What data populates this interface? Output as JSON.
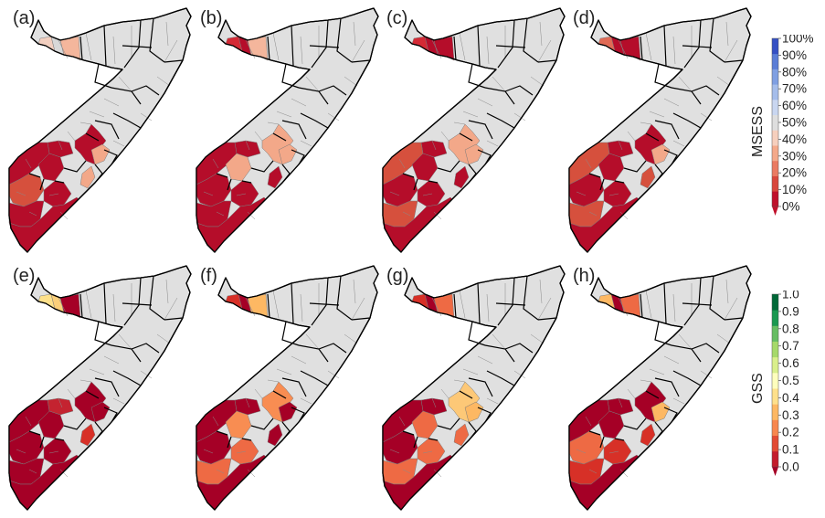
{
  "panels": [
    {
      "label": "(a)",
      "row": 0,
      "col": 0,
      "scheme": "msess",
      "fills": {
        "nw1": "#f2cfc0",
        "nw2": "#d8d8d8",
        "nw3": "#f4b69c",
        "c1": "#b50d2a",
        "c2": "#b50d2a",
        "c3": "#f3a889",
        "c4": "#f3a889",
        "s1": "#b50d2a",
        "s2": "#b50d2a",
        "s3": "#d6503d",
        "s4": "#b50d2a",
        "s5": "#b50d2a",
        "s6": "#b50d2a"
      }
    },
    {
      "label": "(b)",
      "row": 0,
      "col": 1,
      "scheme": "msess",
      "fills": {
        "nw1": "#d42a35",
        "nw2": "#b50d2a",
        "nw3": "#f4b69c",
        "c1": "#b50d2a",
        "c2": "#f3a889",
        "c3": "#f3a889",
        "c4": "#b50d2a",
        "s1": "#b50d2a",
        "s2": "#f3a889",
        "s3": "#b50d2a",
        "s4": "#b50d2a",
        "s5": "#b50d2a",
        "s6": "#b50d2a"
      }
    },
    {
      "label": "(c)",
      "row": 0,
      "col": 2,
      "scheme": "msess",
      "fills": {
        "nw1": "#d42a35",
        "nw2": "#b50d2a",
        "nw3": "#b50d2a",
        "c1": "#b50d2a",
        "c2": "#f3a889",
        "c3": "#f3a889",
        "c4": "#b50d2a",
        "s1": "#d6503d",
        "s2": "#b50d2a",
        "s3": "#b50d2a",
        "s4": "#b50d2a",
        "s5": "#d6503d",
        "s6": "#b50d2a"
      }
    },
    {
      "label": "(d)",
      "row": 0,
      "col": 3,
      "scheme": "msess",
      "fills": {
        "nw1": "#e06a55",
        "nw2": "#b50d2a",
        "nw3": "#b50d2a",
        "c1": "#b50d2a",
        "c2": "#b50d2a",
        "c3": "#f3a889",
        "c4": "#d6503d",
        "s1": "#d6503d",
        "s2": "#b50d2a",
        "s3": "#b50d2a",
        "s4": "#b50d2a",
        "s5": "#d6503d",
        "s6": "#b50d2a"
      }
    },
    {
      "label": "(e)",
      "row": 1,
      "col": 0,
      "scheme": "gss",
      "fills": {
        "nw1": "#fde08a",
        "nw2": "#fbcf7a",
        "nw3": "#a50026",
        "c1": "#c42330",
        "c2": "#a50026",
        "c3": "#a50026",
        "c4": "#d73027",
        "s1": "#a50026",
        "s2": "#a50026",
        "s3": "#a50026",
        "s4": "#a50026",
        "s5": "#a50026",
        "s6": "#a50026"
      }
    },
    {
      "label": "(f)",
      "row": 1,
      "col": 1,
      "scheme": "gss",
      "fills": {
        "nw1": "#d73027",
        "nw2": "#a50026",
        "nw3": "#fdb863",
        "c1": "#a50026",
        "c2": "#f88d52",
        "c3": "#a50026",
        "c4": "#a50026",
        "s1": "#a50026",
        "s2": "#f88d52",
        "s3": "#a50026",
        "s4": "#ee6a44",
        "s5": "#ee6a44",
        "s6": "#a50026"
      }
    },
    {
      "label": "(g)",
      "row": 1,
      "col": 2,
      "scheme": "gss",
      "fills": {
        "nw1": "#d73027",
        "nw2": "#a50026",
        "nw3": "#ee6a44",
        "c1": "#a50026",
        "c2": "#fdc877",
        "c3": "#fdb863",
        "c4": "#ee6a44",
        "s1": "#a50026",
        "s2": "#ee6a44",
        "s3": "#a50026",
        "s4": "#ee6a44",
        "s5": "#ee6a44",
        "s6": "#a50026"
      }
    },
    {
      "label": "(h)",
      "row": 1,
      "col": 3,
      "scheme": "gss",
      "fills": {
        "nw1": "#fdb863",
        "nw2": "#a50026",
        "nw3": "#ee6a44",
        "c1": "#a50026",
        "c2": "#a50026",
        "c3": "#fdb863",
        "c4": "#d73027",
        "s1": "#a50026",
        "s2": "#a50026",
        "s3": "#ee6a44",
        "s4": "#d73027",
        "s5": "#d73027",
        "s6": "#a50026"
      }
    }
  ],
  "colorbars": {
    "msess": {
      "title": "MSESS",
      "ticks": [
        "0%",
        "10%",
        "20%",
        "30%",
        "40%",
        "50%",
        "60%",
        "70%",
        "80%",
        "90%",
        "100%"
      ],
      "colors": [
        "#c0102b",
        "#d8463c",
        "#ea7a62",
        "#f4a98a",
        "#f6cfbd",
        "#dedede",
        "#c9d6f0",
        "#a5bdea",
        "#7f9fe2",
        "#5b7dd6",
        "#3550c4"
      ],
      "extend_min_color": "#c0102b"
    },
    "gss": {
      "title": "GSS",
      "ticks": [
        "0.0",
        "0.1",
        "0.2",
        "0.3",
        "0.4",
        "0.5",
        "0.6",
        "0.7",
        "0.8",
        "0.9",
        "1.0"
      ],
      "colors": [
        "#c41c2c",
        "#e24a33",
        "#f7864e",
        "#fdb863",
        "#fee08b",
        "#fefebd",
        "#d9ef8b",
        "#a6d96a",
        "#66bd63",
        "#1a9850",
        "#006837"
      ],
      "extend_min_color": "#a50026"
    }
  },
  "base_fill": "#e0e0e0"
}
